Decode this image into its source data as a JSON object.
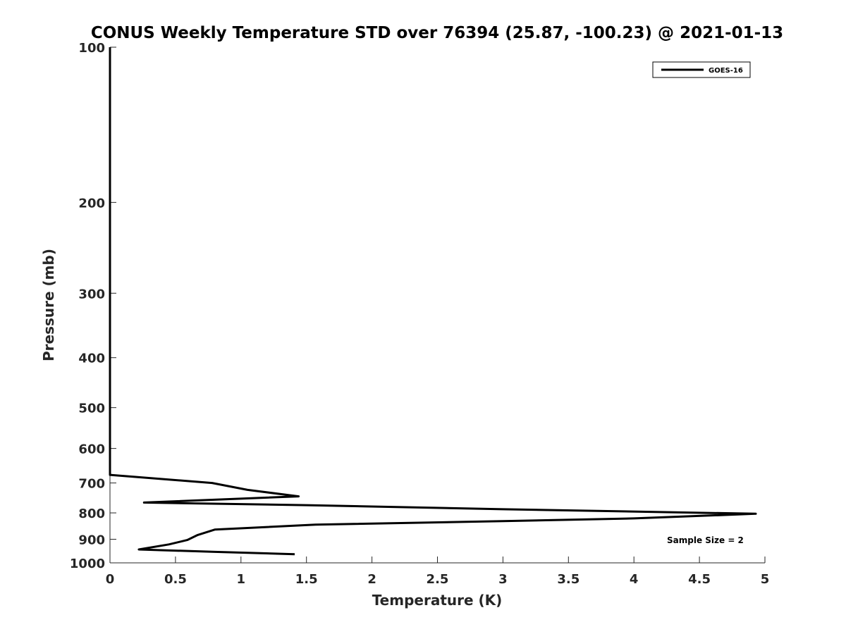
{
  "chart_data": {
    "type": "line",
    "title": "CONUS Weekly Temperature STD over 76394 (25.87, -100.23) @ 2021-01-13",
    "xlabel": "Temperature (K)",
    "ylabel": "Pressure (mb)",
    "xlim": [
      0,
      5
    ],
    "ylim": [
      100,
      1000
    ],
    "y_scale": "log",
    "y_reversed": true,
    "x_ticks": [
      0,
      0.5,
      1,
      1.5,
      2,
      2.5,
      3,
      3.5,
      4,
      4.5,
      5
    ],
    "x_tick_labels": [
      "0",
      "0.5",
      "1",
      "1.5",
      "2",
      "2.5",
      "3",
      "3.5",
      "4",
      "4.5",
      "5"
    ],
    "y_ticks": [
      100,
      200,
      300,
      400,
      500,
      600,
      700,
      800,
      900,
      1000
    ],
    "y_tick_labels": [
      "100",
      "200",
      "300",
      "400",
      "500",
      "600",
      "700",
      "800",
      "900",
      "1000"
    ],
    "grid": false,
    "legend_position": "top-right",
    "annotation": "Sample Size = 2",
    "series": [
      {
        "name": "GOES-16",
        "color": "#000000",
        "points": [
          {
            "x": 0.0,
            "y": 100
          },
          {
            "x": 0.0,
            "y": 675
          },
          {
            "x": 0.78,
            "y": 700
          },
          {
            "x": 1.05,
            "y": 722
          },
          {
            "x": 1.44,
            "y": 743
          },
          {
            "x": 0.26,
            "y": 764
          },
          {
            "x": 1.5,
            "y": 773
          },
          {
            "x": 3.0,
            "y": 787
          },
          {
            "x": 4.93,
            "y": 803
          },
          {
            "x": 4.0,
            "y": 820
          },
          {
            "x": 3.0,
            "y": 830
          },
          {
            "x": 1.57,
            "y": 843
          },
          {
            "x": 0.8,
            "y": 862
          },
          {
            "x": 0.67,
            "y": 883
          },
          {
            "x": 0.59,
            "y": 903
          },
          {
            "x": 0.45,
            "y": 921
          },
          {
            "x": 0.22,
            "y": 942
          },
          {
            "x": 0.8,
            "y": 952
          },
          {
            "x": 1.41,
            "y": 962
          }
        ]
      }
    ]
  }
}
